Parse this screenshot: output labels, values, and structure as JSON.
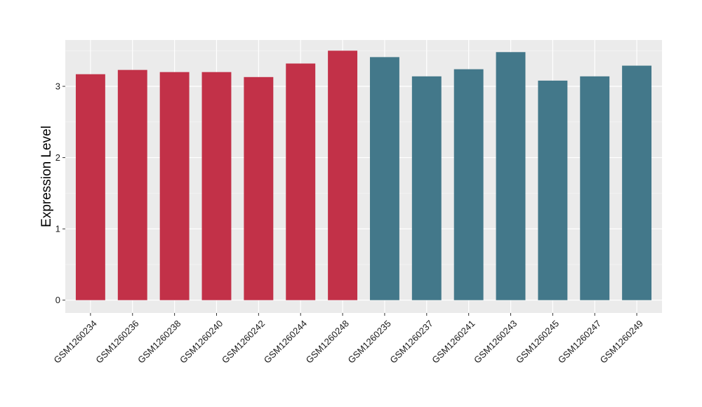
{
  "chart_data": {
    "type": "bar",
    "title": "",
    "xlabel": "",
    "ylabel": "Expression Level",
    "ylim": [
      -0.18,
      3.65
    ],
    "yticks": [
      0,
      1,
      2,
      3
    ],
    "grid": true,
    "legend": "none",
    "panel_background": "#ebebeb",
    "categories": [
      "GSM1260234",
      "GSM1260236",
      "GSM1260238",
      "GSM1260240",
      "GSM1260242",
      "GSM1260244",
      "GSM1260248",
      "GSM1260235",
      "GSM1260237",
      "GSM1260241",
      "GSM1260243",
      "GSM1260245",
      "GSM1260247",
      "GSM1260249"
    ],
    "values": [
      3.17,
      3.23,
      3.2,
      3.2,
      3.13,
      3.32,
      3.5,
      3.41,
      3.14,
      3.24,
      3.48,
      3.08,
      3.14,
      3.29
    ],
    "groups": [
      {
        "color": "#c23148",
        "count": 7
      },
      {
        "color": "#43788a",
        "count": 7
      }
    ]
  }
}
